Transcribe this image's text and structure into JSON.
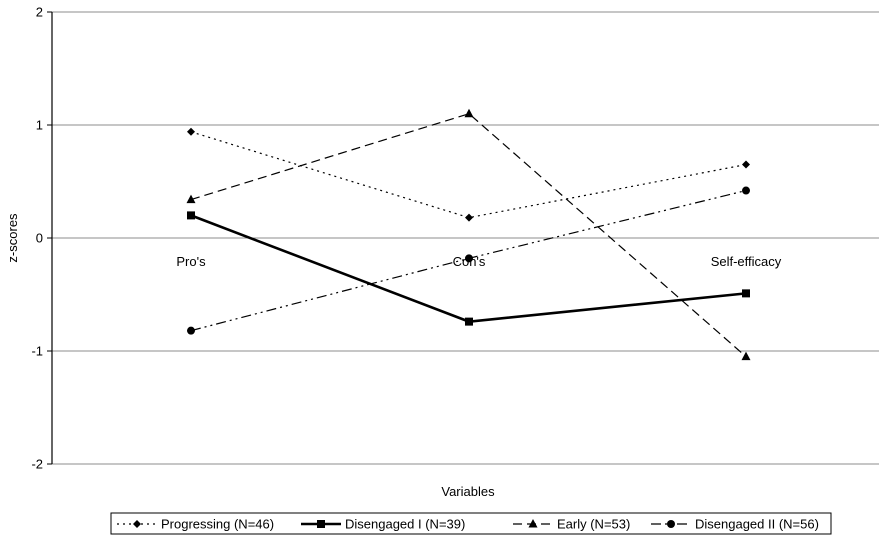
{
  "chart_data": {
    "type": "line",
    "categories": [
      "Pro's",
      "Con's",
      "Self-efficacy"
    ],
    "xlabel": "Variables",
    "ylabel": "z-scores",
    "ylim": [
      -2,
      2
    ],
    "yticks": [
      2,
      1,
      0,
      -1,
      -2
    ],
    "grid": true,
    "legend_position": "bottom",
    "series": [
      {
        "name": "Progressing (N=46)",
        "values": [
          0.94,
          0.18,
          0.65
        ],
        "marker": "diamond",
        "dash": "dotted",
        "color": "#000000"
      },
      {
        "name": "Disengaged I (N=39)",
        "values": [
          0.2,
          -0.74,
          -0.49
        ],
        "marker": "square",
        "dash": "solid",
        "color": "#000000"
      },
      {
        "name": "Early (N=53)",
        "values": [
          0.34,
          1.1,
          -1.05
        ],
        "marker": "triangle",
        "dash": "dashed",
        "color": "#000000"
      },
      {
        "name": "Disengaged II (N=56)",
        "values": [
          -0.82,
          -0.18,
          0.42
        ],
        "marker": "circle",
        "dash": "dash-dot-dot",
        "color": "#000000"
      }
    ]
  }
}
